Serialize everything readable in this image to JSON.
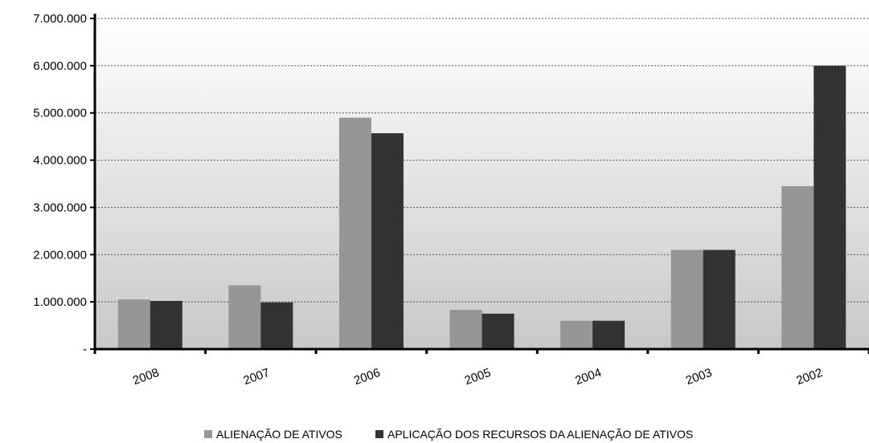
{
  "chart_data": {
    "type": "bar",
    "categories": [
      "2008",
      "2007",
      "2006",
      "2005",
      "2004",
      "2003",
      "2002"
    ],
    "series": [
      {
        "name": "ALIENAÇÃO DE ATIVOS",
        "color": "#969696",
        "values": [
          1050000,
          1350000,
          4900000,
          830000,
          600000,
          2100000,
          3450000
        ]
      },
      {
        "name": "APLICAÇÃO DOS RECURSOS DA ALIENAÇÃO DE ATIVOS",
        "color": "#333333",
        "values": [
          1020000,
          990000,
          4570000,
          750000,
          600000,
          2100000,
          6000000
        ]
      }
    ],
    "yticks": [
      0,
      1000000,
      2000000,
      3000000,
      4000000,
      5000000,
      6000000,
      7000000
    ],
    "ytick_labels": [
      "-",
      "1.000.000",
      "2.000.000",
      "3.000.000",
      "4.000.000",
      "5.000.000",
      "6.000.000",
      "7.000.000"
    ],
    "ylim": [
      0,
      7000000
    ],
    "grid": true,
    "legend_position": "bottom",
    "title": "",
    "xlabel": "",
    "ylabel": "",
    "background_gradient": [
      "#ffffff",
      "#c8c8c8"
    ]
  }
}
